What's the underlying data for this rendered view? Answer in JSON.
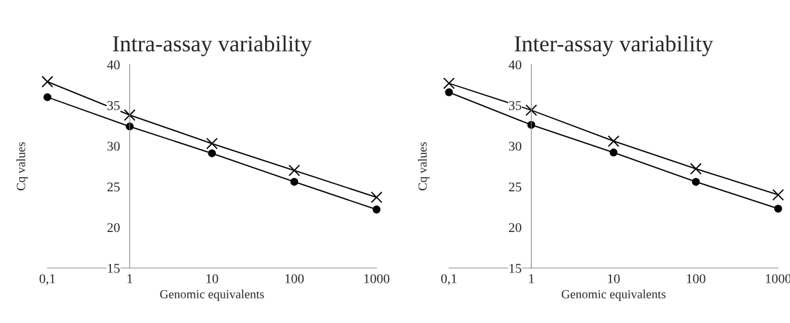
{
  "chart_data": [
    {
      "type": "line",
      "title": "Intra-assay variability",
      "xlabel": "Genomic equivalents",
      "ylabel": "Cq values",
      "log": "x",
      "xlim": [
        0.1,
        1000
      ],
      "xticks": [
        {
          "value": 0.1,
          "label": "0,1"
        },
        1,
        10,
        100,
        1000
      ],
      "ylim": [
        15,
        40
      ],
      "yticks": [
        15,
        20,
        25,
        30,
        35,
        40
      ],
      "grid": false,
      "x": [
        0.1,
        1,
        10,
        100,
        1000
      ],
      "series": [
        {
          "color": "#000000",
          "marker": "cross",
          "line_style": "solid",
          "values": [
            37.9,
            33.8,
            30.3,
            27.0,
            23.7
          ]
        },
        {
          "color": "#000000",
          "marker": "circle",
          "line_style": "solid",
          "values": [
            36.0,
            32.4,
            29.1,
            25.6,
            22.2
          ]
        }
      ]
    },
    {
      "type": "line",
      "title": "Inter-assay variability",
      "xlabel": "Genomic equivalents",
      "ylabel": "Cq values",
      "log": "x",
      "xlim": [
        0.1,
        1000
      ],
      "xticks": [
        {
          "value": 0.1,
          "label": "0,1"
        },
        1,
        10,
        100,
        1000
      ],
      "ylim": [
        15,
        40
      ],
      "yticks": [
        15,
        20,
        25,
        30,
        35,
        40
      ],
      "grid": false,
      "x": [
        0.1,
        1,
        10,
        100,
        1000
      ],
      "series": [
        {
          "color": "#000000",
          "marker": "cross",
          "line_style": "solid",
          "values": [
            37.7,
            34.4,
            30.6,
            27.2,
            24.0
          ]
        },
        {
          "color": "#000000",
          "marker": "circle",
          "line_style": "solid",
          "values": [
            36.6,
            32.6,
            29.2,
            25.6,
            22.3
          ]
        }
      ]
    }
  ]
}
